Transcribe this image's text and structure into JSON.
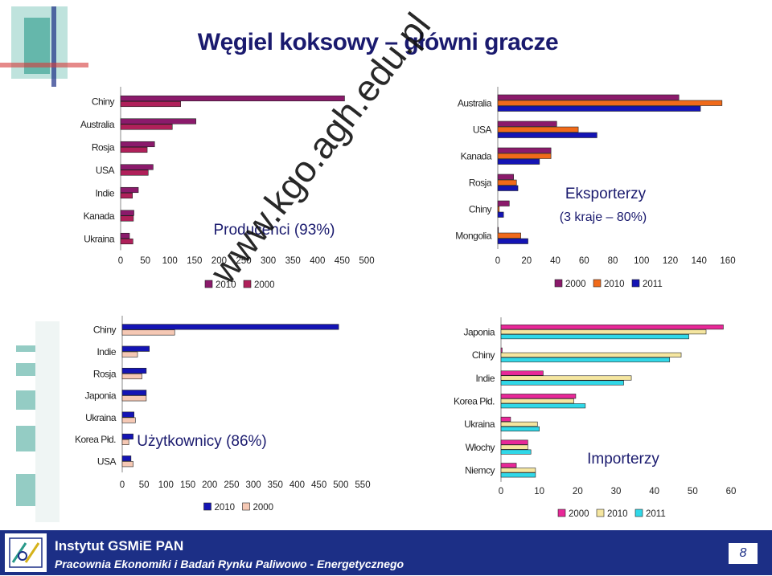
{
  "title": "Węgiel koksowy – główni gracze",
  "watermark": "www.kgo.agh.edu.pl",
  "footer": {
    "line1": "Instytut GSMiE PAN",
    "line2": "Pracownia Ekonomiki i Badań Rynku Paliwowo - Energetycznego",
    "page": "8"
  },
  "colors": {
    "bg_decor": "#2a9a8a",
    "footer": "#1c2f86",
    "s2010_prod": "#8b1a6b",
    "s2000_prod": "#b0205a",
    "s2010_use": "#1414b4",
    "s2000_use": "#f5c8b4",
    "exp2000": "#8b1a6b",
    "exp2010": "#f06a1a",
    "exp2011": "#1414b4",
    "imp2000": "#e82898",
    "imp2010": "#f5e6a0",
    "imp2011": "#30d8e8"
  },
  "chart_data": [
    {
      "id": "producers",
      "type": "bar",
      "orientation": "horizontal",
      "annotation": "Producenci (93%)",
      "categories": [
        "Chiny",
        "Australia",
        "Rosja",
        "USA",
        "Indie",
        "Kanada",
        "Ukraina"
      ],
      "series": [
        {
          "name": "2010",
          "color": "#8b1a6b",
          "values": [
            455,
            153,
            69,
            66,
            36,
            27,
            18
          ]
        },
        {
          "name": "2000",
          "color": "#b0205a",
          "values": [
            122,
            105,
            54,
            56,
            24,
            26,
            25
          ]
        }
      ],
      "xlim": [
        0,
        500
      ],
      "xticks": [
        0,
        50,
        100,
        150,
        200,
        250,
        300,
        350,
        400,
        450,
        500
      ],
      "legend": [
        "2010",
        "2000"
      ],
      "legend_placement": "bottom"
    },
    {
      "id": "exporters",
      "type": "bar",
      "orientation": "horizontal",
      "annotation": "Eksporterzy",
      "annotation2": "(3 kraje – 80%)",
      "categories": [
        "Australia",
        "USA",
        "Kanada",
        "Rosja",
        "Chiny",
        "Mongolia"
      ],
      "series": [
        {
          "name": "2000",
          "color": "#8b1a6b",
          "values": [
            126,
            41,
            37,
            11,
            8,
            0
          ]
        },
        {
          "name": "2010",
          "color": "#f06a1a",
          "values": [
            156,
            56,
            37,
            13,
            1,
            16
          ]
        },
        {
          "name": "2011",
          "color": "#1414b4",
          "values": [
            141,
            69,
            29,
            14,
            4,
            21
          ]
        }
      ],
      "xlim": [
        0,
        160
      ],
      "xticks": [
        0,
        20,
        40,
        60,
        80,
        100,
        120,
        140,
        160
      ],
      "legend": [
        "2000",
        "2010",
        "2011"
      ],
      "legend_placement": "bottom"
    },
    {
      "id": "users",
      "type": "bar",
      "orientation": "horizontal",
      "annotation": "Użytkownicy (86%)",
      "categories": [
        "Chiny",
        "Indie",
        "Rosja",
        "Japonia",
        "Ukraina",
        "Korea Płd.",
        "USA"
      ],
      "series": [
        {
          "name": "2010",
          "color": "#1414b4",
          "values": [
            495,
            62,
            55,
            55,
            27,
            25,
            20
          ]
        },
        {
          "name": "2000",
          "color": "#f5c8b4",
          "values": [
            120,
            35,
            45,
            55,
            30,
            15,
            25
          ]
        }
      ],
      "xlim": [
        0,
        550
      ],
      "xticks": [
        0,
        50,
        100,
        150,
        200,
        250,
        300,
        350,
        400,
        450,
        500,
        550
      ],
      "legend": [
        "2010",
        "2000"
      ],
      "legend_placement": "bottom"
    },
    {
      "id": "importers",
      "type": "bar",
      "orientation": "horizontal",
      "annotation": "Importerzy",
      "categories": [
        "Japonia",
        "Chiny",
        "Indie",
        "Korea Płd.",
        "Ukraina",
        "Włochy",
        "Niemcy"
      ],
      "series": [
        {
          "name": "2000",
          "color": "#e82898",
          "values": [
            58,
            0.3,
            11,
            19.5,
            2.5,
            7,
            4
          ]
        },
        {
          "name": "2010",
          "color": "#f5e6a0",
          "values": [
            53.5,
            47,
            34,
            19,
            9.5,
            7,
            9
          ]
        },
        {
          "name": "2011",
          "color": "#30d8e8",
          "values": [
            49,
            44,
            32,
            22,
            10,
            7.8,
            9
          ]
        }
      ],
      "xlim": [
        0,
        60
      ],
      "xticks": [
        0,
        10,
        20,
        30,
        40,
        50,
        60
      ],
      "legend": [
        "2000",
        "2010",
        "2011"
      ],
      "legend_placement": "bottom"
    }
  ]
}
